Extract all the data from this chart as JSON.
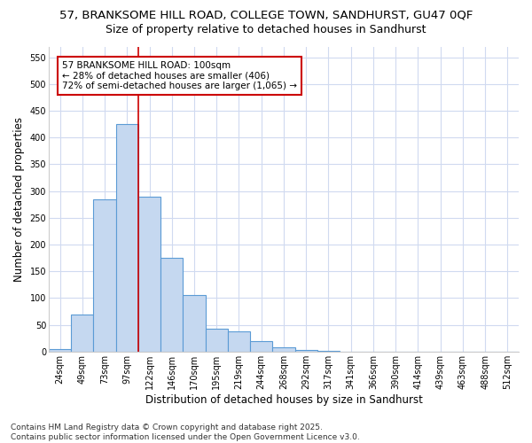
{
  "title_line1": "57, BRANKSOME HILL ROAD, COLLEGE TOWN, SANDHURST, GU47 0QF",
  "title_line2": "Size of property relative to detached houses in Sandhurst",
  "xlabel": "Distribution of detached houses by size in Sandhurst",
  "ylabel": "Number of detached properties",
  "categories": [
    "24sqm",
    "49sqm",
    "73sqm",
    "97sqm",
    "122sqm",
    "146sqm",
    "170sqm",
    "195sqm",
    "219sqm",
    "244sqm",
    "268sqm",
    "292sqm",
    "317sqm",
    "341sqm",
    "366sqm",
    "390sqm",
    "414sqm",
    "439sqm",
    "463sqm",
    "488sqm",
    "512sqm"
  ],
  "bar_values": [
    5,
    70,
    285,
    425,
    290,
    175,
    105,
    43,
    38,
    20,
    8,
    3,
    1,
    0,
    0,
    0,
    0,
    0,
    0,
    0,
    0
  ],
  "bar_color": "#c5d8f0",
  "bar_edge_color": "#5b9bd5",
  "red_line_x": 3.5,
  "annotation_text": "57 BRANKSOME HILL ROAD: 100sqm\n← 28% of detached houses are smaller (406)\n72% of semi-detached houses are larger (1,065) →",
  "annotation_box_color": "#ffffff",
  "annotation_border_color": "#cc0000",
  "ylim": [
    0,
    570
  ],
  "yticks": [
    0,
    50,
    100,
    150,
    200,
    250,
    300,
    350,
    400,
    450,
    500,
    550
  ],
  "footnote_line1": "Contains HM Land Registry data © Crown copyright and database right 2025.",
  "footnote_line2": "Contains public sector information licensed under the Open Government Licence v3.0.",
  "bg_color": "#ffffff",
  "grid_color": "#d0daf0",
  "title_fontsize": 9.5,
  "subtitle_fontsize": 9,
  "axis_label_fontsize": 8.5,
  "tick_fontsize": 7,
  "footnote_fontsize": 6.5,
  "annotation_fontsize": 7.5
}
